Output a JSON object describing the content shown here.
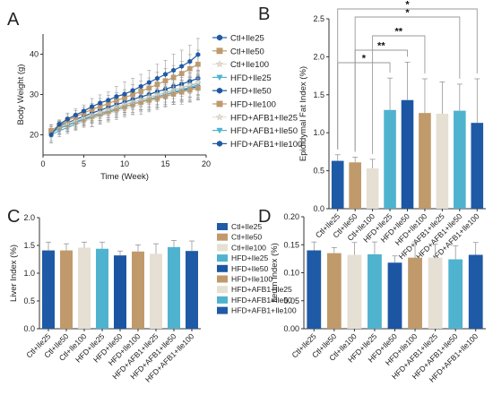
{
  "colors": {
    "Ctl+Ile25": "#1f5aa6",
    "Ctl+Ile50": "#c09a6b",
    "Ctl+Ile100": "#e5e0d3",
    "HFD+Ile25": "#4fb3cf",
    "HFD+Ile50": "#1c56a3",
    "HFD+Ile100": "#c09a6b",
    "HFD+AFB1+Ile25": "#e5e0d3",
    "HFD+AFB1+Ile50": "#4fb3cf",
    "HFD+AFB1+Ile100": "#1f5aa6"
  },
  "chart_data": [
    {
      "panel": "A",
      "type": "line",
      "xlabel": "Time (Week)",
      "ylabel": "Body Weight (g)",
      "xlim": [
        0,
        20
      ],
      "ylim": [
        15,
        45
      ],
      "xticks": [
        "0",
        "5",
        "10",
        "15",
        "20"
      ],
      "yticks": [
        "20",
        "30",
        "40"
      ],
      "x": [
        1,
        2,
        3,
        4,
        5,
        6,
        7,
        8,
        9,
        10,
        11,
        12,
        13,
        14,
        15,
        16,
        17,
        18,
        19
      ],
      "series": [
        {
          "name": "Ctl+Ile25",
          "marker": "hexagon",
          "values": [
            20,
            22.6,
            23.9,
            24.9,
            25.9,
            27,
            27.9,
            28.6,
            29.5,
            30.1,
            31,
            32,
            33,
            34,
            35,
            36,
            37,
            38.2,
            39.9
          ],
          "err": [
            2,
            1,
            1.5,
            1.5,
            1.5,
            2,
            2,
            2,
            2.5,
            3,
            3,
            3,
            3,
            3.5,
            3.5,
            4,
            4,
            4,
            4
          ]
        },
        {
          "name": "Ctl+Ile50",
          "marker": "square",
          "values": [
            21,
            22.4,
            23.5,
            24.5,
            25.4,
            26.3,
            27,
            27.8,
            28.5,
            29.2,
            30,
            30.8,
            31.6,
            32.5,
            33.4,
            34.2,
            35.2,
            36.4,
            37.5
          ],
          "err": [
            1.5,
            1,
            1.5,
            1.5,
            1.5,
            1.5,
            2,
            2,
            2,
            2,
            2.5,
            2.5,
            2.5,
            3,
            3,
            3,
            3,
            3.5,
            3.5
          ]
        },
        {
          "name": "Ctl+Ile100",
          "marker": "star",
          "values": [
            21,
            22,
            22.8,
            23.5,
            24.3,
            25,
            25.6,
            26.3,
            27,
            27.6,
            28.2,
            28.8,
            29.4,
            30,
            30.6,
            31.2,
            31.8,
            32.4,
            33
          ],
          "err": [
            1.5,
            1,
            1.5,
            1.5,
            1.5,
            1.5,
            2,
            2,
            2,
            2,
            2,
            2.5,
            2.5,
            2.5,
            2.5,
            3,
            3,
            3,
            3
          ]
        },
        {
          "name": "HFD+Ile25",
          "marker": "triangle-down",
          "values": [
            20.5,
            21.6,
            22.4,
            23.2,
            24,
            24.8,
            25.5,
            26.2,
            26.9,
            27.5,
            28.1,
            28.7,
            29.3,
            29.9,
            30.5,
            31.1,
            31.7,
            32.3,
            32.8
          ],
          "err": [
            2,
            1.5,
            1.5,
            1.5,
            1.5,
            2,
            2,
            2,
            2,
            2,
            2.5,
            2.5,
            2.5,
            2.5,
            3,
            3,
            3,
            3,
            3
          ]
        },
        {
          "name": "HFD+Ile50",
          "marker": "hexagon",
          "values": [
            21,
            22.2,
            23,
            23.8,
            24.6,
            25.4,
            26.1,
            26.8,
            27.5,
            28.1,
            28.8,
            29.4,
            30,
            30.7,
            31.3,
            32,
            32.6,
            33.3,
            34
          ],
          "err": [
            1.5,
            1.5,
            1.5,
            1.5,
            1.5,
            2,
            2,
            2,
            2,
            2,
            2,
            2.5,
            2.5,
            2.5,
            2.5,
            3,
            3,
            3,
            3
          ]
        },
        {
          "name": "HFD+Ile100",
          "marker": "square",
          "values": [
            21,
            21.8,
            22.5,
            23.2,
            23.9,
            24.6,
            25.2,
            25.8,
            26.4,
            27,
            27.6,
            28.1,
            28.6,
            29.1,
            29.6,
            30.1,
            30.6,
            31.1,
            31.6
          ],
          "err": [
            1.5,
            1.5,
            1.5,
            1.5,
            1.5,
            1.5,
            2,
            2,
            2,
            2,
            2,
            2,
            2.5,
            2.5,
            2.5,
            2.5,
            2.5,
            3,
            3
          ]
        },
        {
          "name": "HFD+AFB1+Ile25",
          "marker": "star",
          "values": [
            21,
            21.6,
            22.2,
            22.8,
            23.4,
            24,
            24.6,
            25.2,
            25.8,
            26.4,
            27,
            27.6,
            28.2,
            28.8,
            29.4,
            30,
            30.6,
            31.2,
            31.8
          ],
          "err": [
            1.5,
            1.5,
            1.5,
            1.5,
            1.5,
            2,
            2,
            2,
            2,
            2,
            2,
            2.5,
            2.5,
            2.5,
            2.5,
            2.5,
            3,
            3,
            3
          ]
        },
        {
          "name": "HFD+AFB1+Ile50",
          "marker": "triangle-down",
          "values": [
            20,
            21,
            21.8,
            22.6,
            23.4,
            24.1,
            24.8,
            25.5,
            26.2,
            26.9,
            27.6,
            28.2,
            28.8,
            29.4,
            30,
            30.6,
            31.2,
            31.8,
            32.4
          ],
          "err": [
            2,
            1.5,
            1.5,
            1.5,
            1.5,
            2,
            2,
            2,
            2,
            2,
            2.5,
            2.5,
            2.5,
            2.5,
            2.5,
            3,
            3,
            3,
            3
          ]
        },
        {
          "name": "HFD+AFB1+Ile100",
          "marker": "hexagon",
          "values": [
            21,
            21.7,
            22.4,
            23.1,
            23.8,
            24.5,
            25.2,
            25.8,
            26.4,
            27,
            27.6,
            28.2,
            28.8,
            29.4,
            30,
            30.5,
            31,
            31.5,
            32
          ],
          "err": [
            1.5,
            1.5,
            1.5,
            1.5,
            1.5,
            1.5,
            2,
            2,
            2,
            2,
            2,
            2,
            2.5,
            2.5,
            2.5,
            2.5,
            2.5,
            3,
            3
          ]
        }
      ]
    },
    {
      "panel": "B",
      "type": "bar",
      "ylabel": "Epididymal Fat Index (%)",
      "ylim": [
        0,
        2.5
      ],
      "yticks": [
        "0.0",
        "0.5",
        "1.0",
        "1.5",
        "2.0",
        "2.5"
      ],
      "categories": [
        "Ctl+Ile25",
        "Ctl+Ile50",
        "Ctl+Ile100",
        "HFD+Ile25",
        "HFD+Ile50",
        "HFD+Ile100",
        "HFD+AFB1+Ile25",
        "HFD+AFB1+Ile50",
        "HFD+AFB1+Ile100"
      ],
      "values": [
        0.63,
        0.61,
        0.53,
        1.3,
        1.43,
        1.26,
        1.25,
        1.29,
        1.13
      ],
      "err": [
        0.08,
        0.07,
        0.12,
        0.42,
        0.5,
        0.45,
        0.42,
        0.35,
        0.58
      ],
      "significance": [
        {
          "from": 0,
          "to": 3,
          "label": "*"
        },
        {
          "from": 1,
          "to": 4,
          "label": "**"
        },
        {
          "from": 2,
          "to": 5,
          "label": "**"
        },
        {
          "from": 1,
          "to": 7,
          "label": "*"
        },
        {
          "from": 0,
          "to": 8,
          "label": "*"
        }
      ]
    },
    {
      "panel": "C",
      "type": "bar",
      "ylabel": "Liver Index (%)",
      "ylim": [
        0,
        2.0
      ],
      "yticks": [
        "0.0",
        "0.5",
        "1.0",
        "1.5",
        "2.0"
      ],
      "categories": [
        "Ctl+Ile25",
        "Ctl+Ile50",
        "Ctl+Ile100",
        "HFD+Ile25",
        "HFD+Ile50",
        "HFD+Ile100",
        "HFD+AFB1+Ile25",
        "HFD+AFB1+Ile50",
        "HFD+AFB1+Ile100"
      ],
      "values": [
        1.41,
        1.41,
        1.46,
        1.44,
        1.32,
        1.39,
        1.35,
        1.47,
        1.4
      ],
      "err": [
        0.15,
        0.12,
        0.1,
        0.12,
        0.08,
        0.12,
        0.18,
        0.12,
        0.18
      ]
    },
    {
      "panel": "D",
      "type": "bar",
      "ylabel": "Ileum Index (%)",
      "ylim": [
        0,
        0.2
      ],
      "yticks": [
        "0.00",
        "0.05",
        "0.10",
        "0.15",
        "0.20"
      ],
      "categories": [
        "Ctl+Ile25",
        "Ctl+Ile50",
        "Ctl+Ile100",
        "HFD+Ile25",
        "HFD+Ile50",
        "HFD+Ile100",
        "HFD+AFB1+Ile25",
        "HFD+AFB1+Ile50",
        "HFD+AFB1+Ile100"
      ],
      "values": [
        0.14,
        0.135,
        0.132,
        0.133,
        0.118,
        0.127,
        0.127,
        0.124,
        0.132
      ],
      "err": [
        0.015,
        0.01,
        0.022,
        0.022,
        0.012,
        0.028,
        0.024,
        0.024,
        0.022
      ]
    }
  ]
}
